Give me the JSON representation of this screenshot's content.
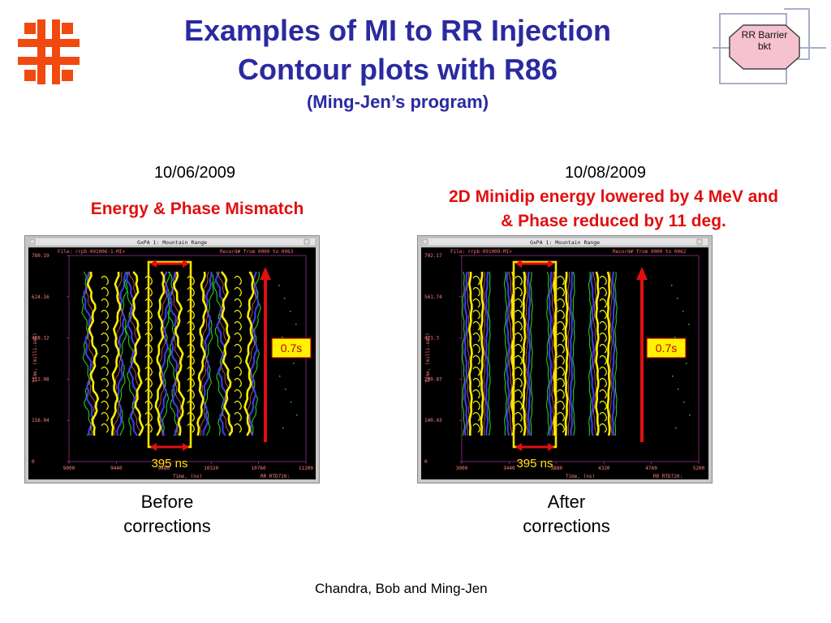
{
  "title": {
    "line1": "Examples of MI to RR Injection",
    "line2": "Contour plots with R86",
    "line3": "(Ming-Jen’s program)"
  },
  "badge": {
    "line1": "RR Barrier",
    "line2": "bkt"
  },
  "left": {
    "date": "10/06/2009",
    "note": "Energy & Phase Mismatch",
    "caption_line1": "Before",
    "caption_line2": "corrections",
    "plot": {
      "window_title": "GxPA 1: Mountain Range",
      "file": "File: rrpb-091006-1-MI>",
      "record": "Record# from 0000 to 0063",
      "y_ticks": [
        "780.19",
        "624.16",
        "468.12",
        "312.08",
        "156.04",
        "0"
      ],
      "x_ticks": [
        "9000",
        "9440",
        "9880",
        "10320",
        "10760",
        "11200"
      ],
      "x_label": "Time, (ns)",
      "y_label": "Time, (milli-sec)",
      "footer": "RR RTD720:",
      "time_label": "0.7s",
      "span_label": "395 ns"
    }
  },
  "right": {
    "date": "10/08/2009",
    "note_line1": "2D Minidip energy lowered by 4 MeV and",
    "note_line2": "& Phase reduced by 11 deg.",
    "caption_line1": "After",
    "caption_line2": "corrections",
    "plot": {
      "window_title": "GxPA 1: Mountain Range",
      "file": "File: rrpb-091009-MI>",
      "record": "Record# from 0000 to 0062",
      "y_ticks": [
        "702.17",
        "561.74",
        "421.3",
        "280.87",
        "140.43",
        "0"
      ],
      "x_ticks": [
        "3000",
        "3440",
        "3880",
        "4320",
        "4760",
        "5200"
      ],
      "x_label": "Time, (ns)",
      "y_label": "Time, (milli-sec)",
      "footer": "RR RTD720:",
      "time_label": "0.7s",
      "span_label": "395 ns"
    }
  },
  "footer": "Chandra, Bob and Ming-Jen",
  "colors": {
    "title": "#2a2aa0",
    "accent_red": "#e01010",
    "logo": "#f04a10",
    "badge_fill": "#f6c2cf",
    "contour_yellow": "#f5f000",
    "contour_blue": "#3a3ae0",
    "contour_green": "#20d020",
    "bracket_yellow": "#ffe000"
  }
}
